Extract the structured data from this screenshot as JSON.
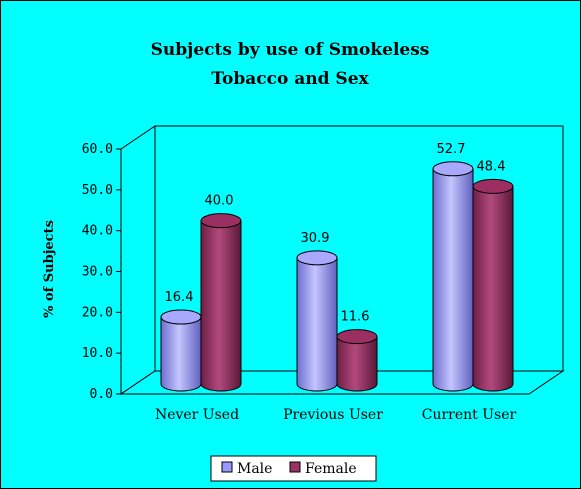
{
  "chart_data": {
    "type": "bar",
    "title": "Subjects by use of Smokeless Tobacco and Sex",
    "title_lines": [
      "Subjects by use of Smokeless",
      "Tobacco and Sex"
    ],
    "ylabel": "% of Subjects",
    "xlabel": "",
    "ylim": [
      0,
      60
    ],
    "yticks": [
      "0.0",
      "10.0",
      "20.0",
      "30.0",
      "40.0",
      "50.0",
      "60.0"
    ],
    "categories": [
      "Never Used",
      "Previous User",
      "Current User"
    ],
    "series": [
      {
        "name": "Male",
        "values": [
          16.4,
          30.9,
          52.7
        ],
        "labels": [
          "16.4",
          "30.9",
          "52.7"
        ],
        "color": "#9999ff"
      },
      {
        "name": "Female",
        "values": [
          40.0,
          11.6,
          48.4
        ],
        "labels": [
          "40.0",
          "11.6",
          "48.4"
        ],
        "color": "#993366"
      }
    ],
    "style": "3d-cylinder",
    "grid": false,
    "legend_position": "bottom"
  }
}
